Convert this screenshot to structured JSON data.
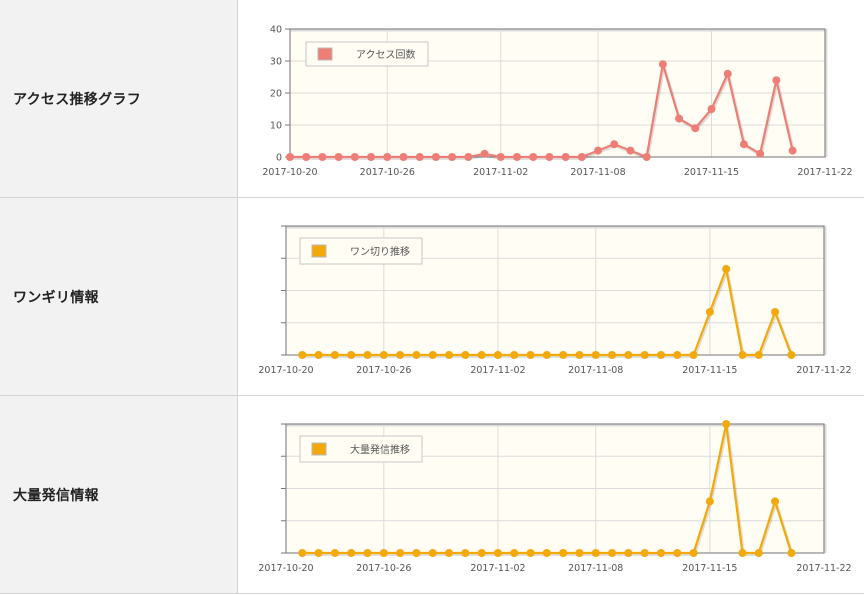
{
  "rows": [
    {
      "label": "アクセス推移グラフ"
    },
    {
      "label": "ワンギリ情報"
    },
    {
      "label": "大量発信情報"
    }
  ],
  "chart_data": [
    {
      "type": "line",
      "x_ticks": [
        "2017-10-20",
        "2017-10-26",
        "2017-11-02",
        "2017-11-08",
        "2017-11-15",
        "2017-11-22"
      ],
      "y_ticks": [
        "0",
        "10",
        "20",
        "30",
        "40"
      ],
      "ylim": [
        0,
        40
      ],
      "grid": true,
      "legend_position": "top-left",
      "series": [
        {
          "name": "アクセス回数",
          "color": "#ec7e75",
          "x": [
            "2017-10-20",
            "2017-10-21",
            "2017-10-22",
            "2017-10-23",
            "2017-10-24",
            "2017-10-25",
            "2017-10-26",
            "2017-10-27",
            "2017-10-28",
            "2017-10-29",
            "2017-10-30",
            "2017-10-31",
            "2017-11-01",
            "2017-11-02",
            "2017-11-03",
            "2017-11-04",
            "2017-11-05",
            "2017-11-06",
            "2017-11-07",
            "2017-11-08",
            "2017-11-09",
            "2017-11-10",
            "2017-11-11",
            "2017-11-12",
            "2017-11-13",
            "2017-11-14",
            "2017-11-15",
            "2017-11-16",
            "2017-11-17",
            "2017-11-18",
            "2017-11-19",
            "2017-11-20",
            "2017-11-21",
            "2017-11-22"
          ],
          "y": [
            0,
            0,
            0,
            0,
            0,
            0,
            0,
            0,
            0,
            0,
            0,
            0,
            1,
            0,
            0,
            0,
            0,
            0,
            0,
            2,
            4,
            2,
            0,
            29,
            12,
            9,
            15,
            26,
            4,
            1,
            24,
            2,
            null,
            null
          ]
        }
      ]
    },
    {
      "type": "line",
      "x_ticks": [
        "2017-10-20",
        "2017-10-26",
        "2017-11-02",
        "2017-11-08",
        "2017-11-15",
        "2017-11-22"
      ],
      "ylim": [
        0,
        3
      ],
      "grid": true,
      "legend_position": "top-left",
      "series": [
        {
          "name": "ワン切り推移",
          "color": "#f3a90a",
          "x": [
            "2017-10-20",
            "2017-10-21",
            "2017-10-22",
            "2017-10-23",
            "2017-10-24",
            "2017-10-25",
            "2017-10-26",
            "2017-10-27",
            "2017-10-28",
            "2017-10-29",
            "2017-10-30",
            "2017-10-31",
            "2017-11-01",
            "2017-11-02",
            "2017-11-03",
            "2017-11-04",
            "2017-11-05",
            "2017-11-06",
            "2017-11-07",
            "2017-11-08",
            "2017-11-09",
            "2017-11-10",
            "2017-11-11",
            "2017-11-12",
            "2017-11-13",
            "2017-11-14",
            "2017-11-15",
            "2017-11-16",
            "2017-11-17",
            "2017-11-18",
            "2017-11-19",
            "2017-11-20",
            "2017-11-21",
            "2017-11-22"
          ],
          "y": [
            null,
            0,
            0,
            0,
            0,
            0,
            0,
            0,
            0,
            0,
            0,
            0,
            0,
            0,
            0,
            0,
            0,
            0,
            0,
            0,
            0,
            0,
            0,
            0,
            0,
            0,
            1,
            2,
            0,
            0,
            1,
            0,
            null,
            null
          ]
        }
      ]
    },
    {
      "type": "line",
      "x_ticks": [
        "2017-10-20",
        "2017-10-26",
        "2017-11-02",
        "2017-11-08",
        "2017-11-15",
        "2017-11-22"
      ],
      "ylim": [
        0,
        5
      ],
      "grid": true,
      "legend_position": "top-left",
      "series": [
        {
          "name": "大量発信推移",
          "color": "#f3a90a",
          "x": [
            "2017-10-20",
            "2017-10-21",
            "2017-10-22",
            "2017-10-23",
            "2017-10-24",
            "2017-10-25",
            "2017-10-26",
            "2017-10-27",
            "2017-10-28",
            "2017-10-29",
            "2017-10-30",
            "2017-10-31",
            "2017-11-01",
            "2017-11-02",
            "2017-11-03",
            "2017-11-04",
            "2017-11-05",
            "2017-11-06",
            "2017-11-07",
            "2017-11-08",
            "2017-11-09",
            "2017-11-10",
            "2017-11-11",
            "2017-11-12",
            "2017-11-13",
            "2017-11-14",
            "2017-11-15",
            "2017-11-16",
            "2017-11-17",
            "2017-11-18",
            "2017-11-19",
            "2017-11-20",
            "2017-11-21",
            "2017-11-22"
          ],
          "y": [
            null,
            0,
            0,
            0,
            0,
            0,
            0,
            0,
            0,
            0,
            0,
            0,
            0,
            0,
            0,
            0,
            0,
            0,
            0,
            0,
            0,
            0,
            0,
            0,
            0,
            0,
            2,
            5,
            0,
            0,
            2,
            0,
            null,
            null
          ]
        }
      ]
    }
  ]
}
